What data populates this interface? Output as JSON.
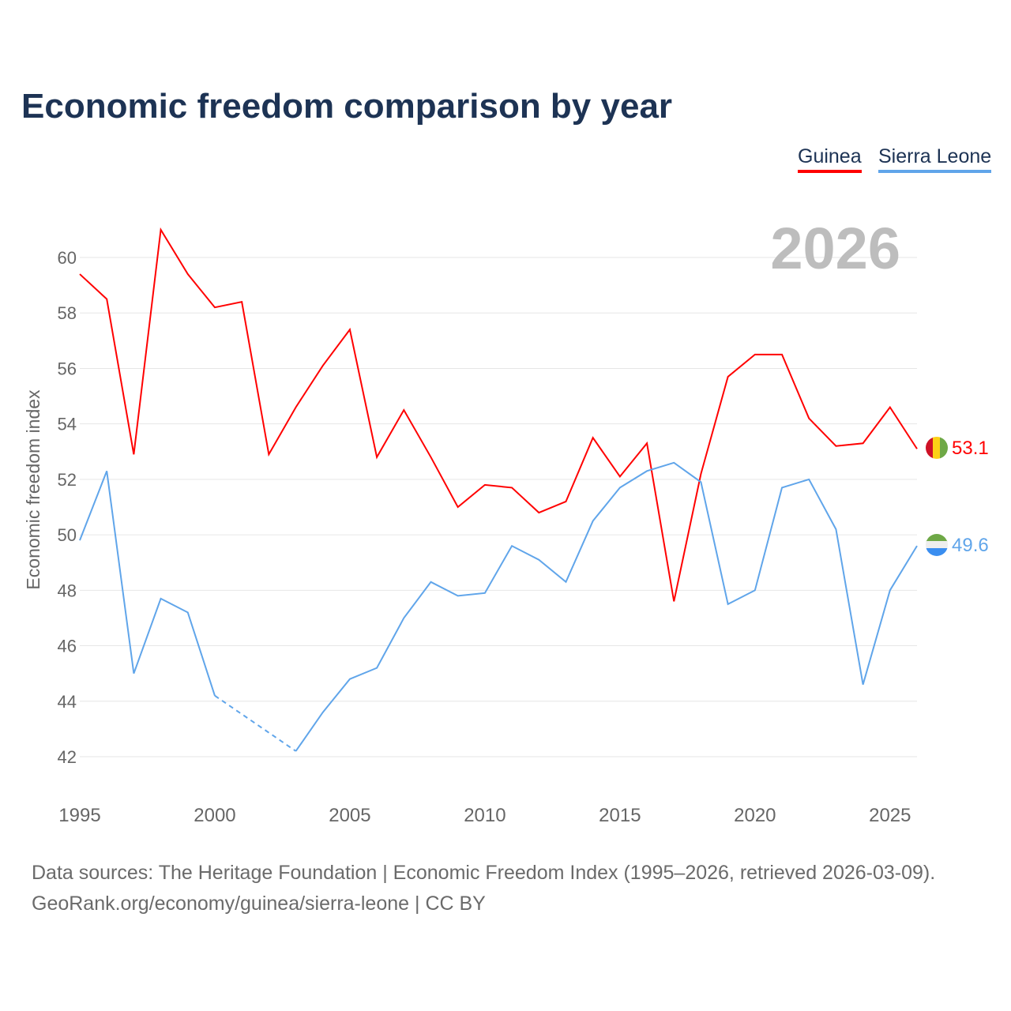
{
  "title": "Economic freedom comparison by year",
  "legend": [
    "Guinea",
    "Sierra Leone"
  ],
  "year_label": "2026",
  "footer": {
    "line1": "Data sources: The Heritage Foundation | Economic Freedom Index (1995–2026, retrieved 2026-03-09).",
    "line2": "GeoRank.org/economy/guinea/sierra-leone | CC BY"
  },
  "chart_data": {
    "type": "line",
    "title": "Economic freedom comparison by year",
    "xlabel": "",
    "ylabel": "Economic freedom index",
    "xlim": [
      1995,
      2026
    ],
    "ylim": [
      41,
      62
    ],
    "x_ticks": [
      1995,
      2000,
      2005,
      2010,
      2015,
      2020,
      2025
    ],
    "y_ticks": [
      42,
      44,
      46,
      48,
      50,
      52,
      54,
      56,
      58,
      60
    ],
    "grid": true,
    "legend_position": "top-right",
    "x": [
      1995,
      1996,
      1997,
      1998,
      1999,
      2000,
      2001,
      2002,
      2003,
      2004,
      2005,
      2006,
      2007,
      2008,
      2009,
      2010,
      2011,
      2012,
      2013,
      2014,
      2015,
      2016,
      2017,
      2018,
      2019,
      2020,
      2021,
      2022,
      2023,
      2024,
      2025,
      2026
    ],
    "series": [
      {
        "name": "Guinea",
        "color": "#ff0000",
        "end_label": "53.1",
        "values": [
          59.4,
          58.5,
          52.9,
          61.0,
          59.4,
          58.2,
          58.4,
          52.9,
          54.6,
          56.1,
          57.4,
          52.8,
          54.5,
          52.8,
          51.0,
          51.8,
          51.7,
          50.8,
          51.2,
          53.5,
          52.1,
          53.3,
          47.6,
          52.2,
          55.7,
          56.5,
          56.5,
          54.2,
          53.2,
          53.3,
          54.6,
          53.1
        ]
      },
      {
        "name": "Sierra Leone",
        "color": "#60a5ea",
        "end_label": "49.6",
        "values": [
          49.8,
          52.3,
          45.0,
          47.7,
          47.2,
          44.2,
          null,
          null,
          42.2,
          43.6,
          44.8,
          45.2,
          47.0,
          48.3,
          47.8,
          47.9,
          49.6,
          49.1,
          48.3,
          50.5,
          51.7,
          52.3,
          52.6,
          51.9,
          47.5,
          48.0,
          51.7,
          52.0,
          50.2,
          44.6,
          48.0,
          49.6
        ]
      }
    ]
  }
}
